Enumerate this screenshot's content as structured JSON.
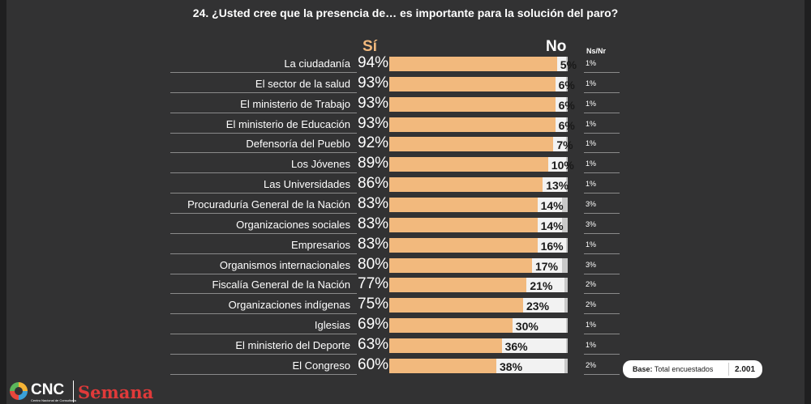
{
  "chart_data": {
    "type": "bar",
    "title": "24. ¿Usted cree que la presencia de… es importante para la solución del paro?",
    "headers": {
      "si": "Sí",
      "no": "No",
      "ns": "Ns/Nr"
    },
    "categories": [
      "La ciudadanía",
      "El sector de la salud",
      "El ministerio de Trabajo",
      "El ministerio de Educación",
      "Defensoría del Pueblo",
      "Los Jóvenes",
      "Las Universidades",
      "Procuraduría General de la Nación",
      "Organizaciones sociales",
      "Empresarios",
      "Organismos internacionales",
      "Fiscalía General de la Nación",
      "Organizaciones indígenas",
      "Iglesias",
      "El ministerio del Deporte",
      "El Congreso"
    ],
    "series": [
      {
        "name": "Sí",
        "values": [
          94,
          93,
          93,
          93,
          92,
          89,
          86,
          83,
          83,
          83,
          80,
          77,
          75,
          69,
          63,
          60
        ]
      },
      {
        "name": "No",
        "values": [
          5,
          6,
          6,
          6,
          7,
          10,
          13,
          14,
          14,
          16,
          17,
          21,
          23,
          30,
          36,
          38
        ]
      },
      {
        "name": "Ns/Nr",
        "values": [
          1,
          1,
          1,
          1,
          1,
          1,
          1,
          3,
          3,
          1,
          3,
          2,
          2,
          1,
          1,
          2
        ]
      }
    ],
    "unit": "%",
    "colors": {
      "si": "#f2b97d",
      "no": "#f2f2f2",
      "ns": "#c8c8c8"
    }
  },
  "base": {
    "label": "Base:",
    "text": "Total encuestados",
    "value": "2.001"
  },
  "logos": {
    "cnc": "CNC",
    "cnc_sub": "Centro Nacional de Consultoría",
    "semana": "Semana"
  }
}
